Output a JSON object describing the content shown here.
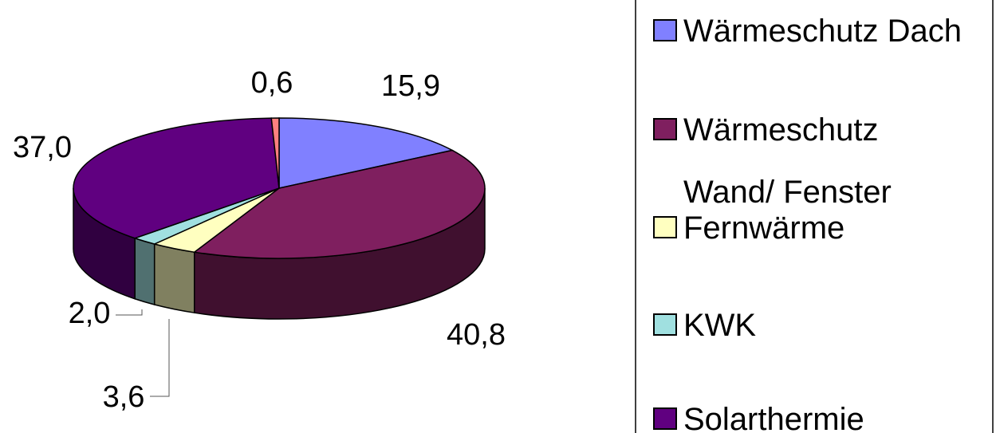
{
  "chart_data": {
    "type": "pie",
    "style": "3d-exploded-pie",
    "series": [
      {
        "name": "Wärmeschutz Dach",
        "label": "15,9",
        "value": 15.9,
        "color": "#8080ff",
        "side_color": "#40407f"
      },
      {
        "name": "Wärmeschutz Wand/ Fenster",
        "label": "40,8",
        "value": 40.8,
        "color": "#7f1f5f",
        "side_color": "#40102f"
      },
      {
        "name": "Fernwärme",
        "label": "3,6",
        "value": 3.6,
        "color": "#ffffc0",
        "side_color": "#808060"
      },
      {
        "name": "KWK",
        "label": "2,0",
        "value": 2.0,
        "color": "#a0e0e0",
        "side_color": "#507070"
      },
      {
        "name": "Solarthermie",
        "label": "37,0",
        "value": 37.0,
        "color": "#600080",
        "side_color": "#300040"
      },
      {
        "name": "",
        "label": "0,6",
        "value": 0.6,
        "color": "#ff8080",
        "side_color": "#804040"
      }
    ],
    "legend": {
      "position": "right",
      "items": [
        {
          "lines": [
            "Wärmeschutz Dach"
          ],
          "color": "#8080ff"
        },
        {
          "lines": [
            "Wärmeschutz",
            "Wand/ Fenster"
          ],
          "color": "#7f1f5f"
        },
        {
          "lines": [
            "Fernwärme"
          ],
          "color": "#ffffc0"
        },
        {
          "lines": [
            "KWK"
          ],
          "color": "#a0e0e0"
        },
        {
          "lines": [
            "Solarthermie"
          ],
          "color": "#600080"
        }
      ]
    }
  }
}
